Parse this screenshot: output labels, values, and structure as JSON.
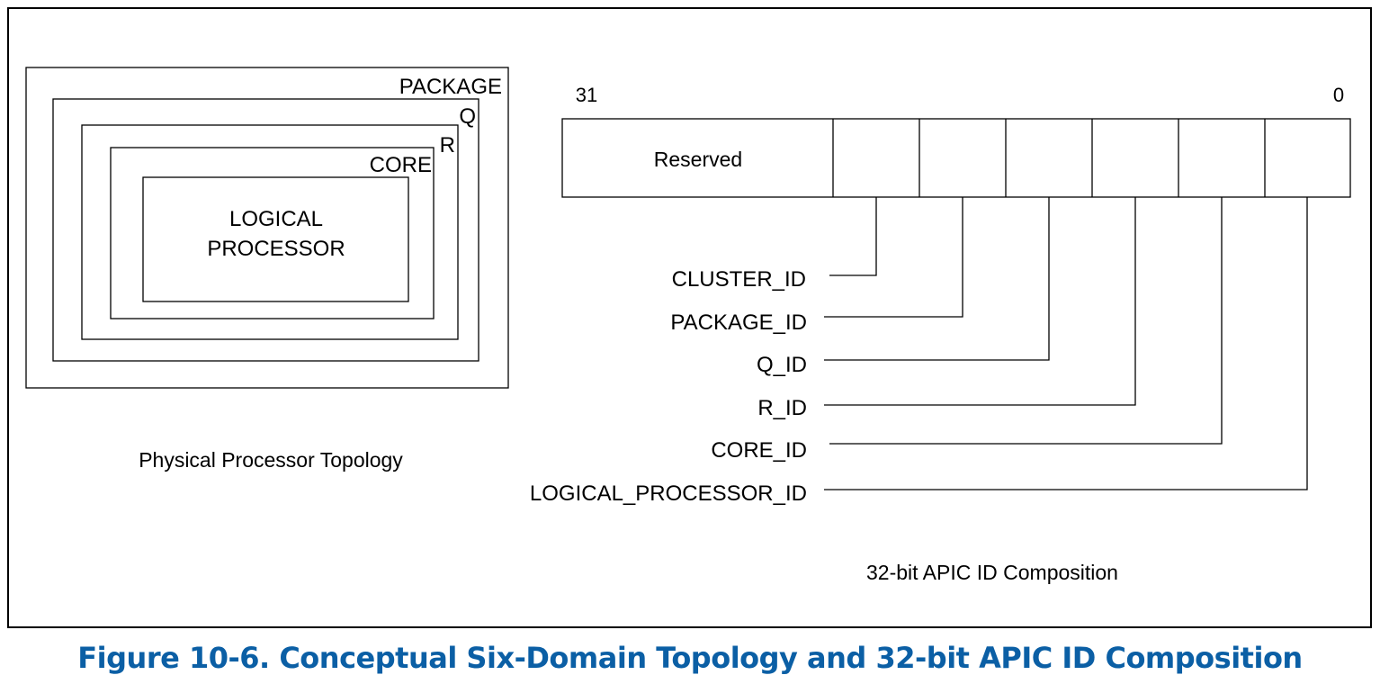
{
  "topology": {
    "package_label": "PACKAGE",
    "q_label": "Q",
    "r_label": "R",
    "core_label": "CORE",
    "logical_processor_label_line1": "LOGICAL",
    "logical_processor_label_line2": "PROCESSOR",
    "caption": "Physical Processor Topology"
  },
  "apic_id": {
    "msb_label": "31",
    "lsb_label": "0",
    "reserved_label": "Reserved",
    "fields": [
      "CLUSTER_ID",
      "PACKAGE_ID",
      "Q_ID",
      "R_ID",
      "CORE_ID",
      "LOGICAL_PROCESSOR_ID"
    ],
    "caption": "32-bit APIC ID Composition"
  },
  "figure": {
    "title": "Figure 10-6.  Conceptual Six-Domain Topology and 32-bit APIC ID Composition",
    "title_color": "#0b5fa5"
  }
}
